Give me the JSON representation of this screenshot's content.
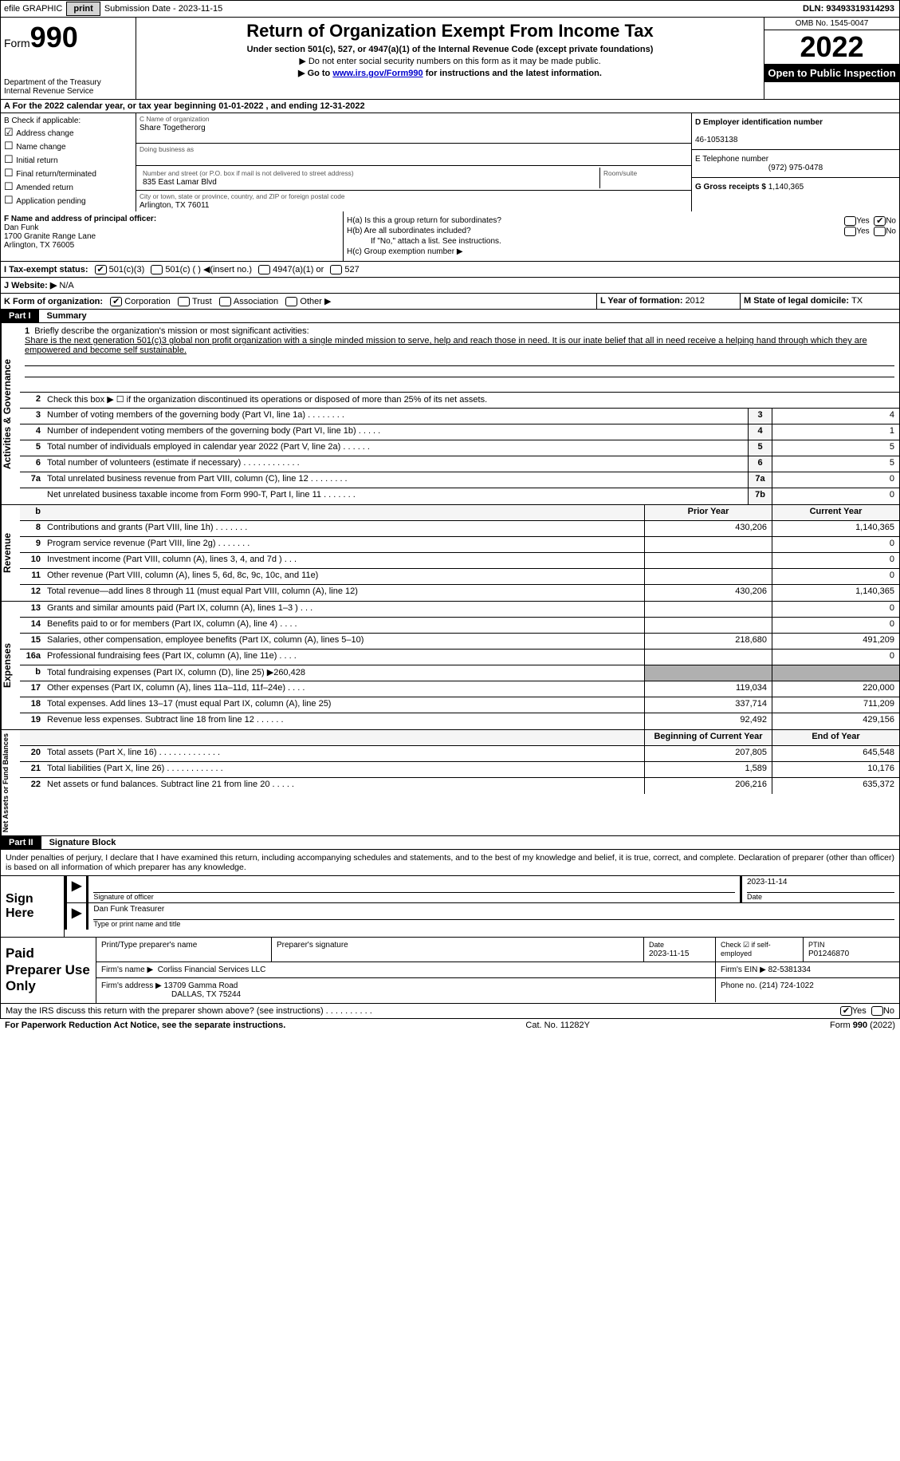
{
  "topbar": {
    "efile_label": "efile GRAPHIC",
    "print_btn": "print",
    "sub_prefix": "Submission Date - ",
    "sub_date": "2023-11-15",
    "dln_prefix": "DLN: ",
    "dln": "93493319314293"
  },
  "header": {
    "form_word": "Form",
    "form_num": "990",
    "dept": "Department of the Treasury\nInternal Revenue Service",
    "title": "Return of Organization Exempt From Income Tax",
    "sub": "Under section 501(c), 527, or 4947(a)(1) of the Internal Revenue Code (except private foundations)",
    "note1": "▶ Do not enter social security numbers on this form as it may be made public.",
    "note2_pre": "▶ Go to ",
    "note2_link": "www.irs.gov/Form990",
    "note2_post": " for instructions and the latest information.",
    "omb": "OMB No. 1545-0047",
    "year": "2022",
    "insp": "Open to Public Inspection"
  },
  "row_a": "A For the 2022 calendar year, or tax year beginning 01-01-2022    , and ending 12-31-2022",
  "col_b": {
    "hdr": "B Check if applicable:",
    "opts": [
      "Address change",
      "Name change",
      "Initial return",
      "Final return/terminated",
      "Amended return",
      "Application pending"
    ],
    "checked": [
      true,
      false,
      false,
      false,
      false,
      false
    ]
  },
  "col_c": {
    "name_lbl": "C Name of organization",
    "name": "Share Togetherorg",
    "dba_lbl": "Doing business as",
    "dba": "",
    "street_lbl": "Number and street (or P.O. box if mail is not delivered to street address)",
    "room_lbl": "Room/suite",
    "street": "835 East Lamar Blvd",
    "city_lbl": "City or town, state or province, country, and ZIP or foreign postal code",
    "city": "Arlington, TX  76011"
  },
  "col_d": {
    "ein_lbl": "D Employer identification number",
    "ein": "46-1053138",
    "tel_lbl": "E Telephone number",
    "tel": "(972) 975-0478",
    "gross_lbl": "G Gross receipts $ ",
    "gross": "1,140,365"
  },
  "block_fh": {
    "f_lbl": "F Name and address of principal officer:",
    "f_name": "Dan Funk",
    "f_addr1": "1700 Granite Range Lane",
    "f_addr2": "Arlington, TX  76005",
    "ha": "H(a)  Is this a group return for subordinates?",
    "hb": "H(b)  Are all subordinates included?",
    "hb_note": "If \"No,\" attach a list. See instructions.",
    "hc": "H(c)  Group exemption number ▶",
    "yes": "Yes",
    "no": "No"
  },
  "row_i": {
    "lbl": "I  Tax-exempt status:",
    "o1": "501(c)(3)",
    "o2": "501(c) (   ) ◀(insert no.)",
    "o3": "4947(a)(1) or",
    "o4": "527"
  },
  "row_j": {
    "lbl": "J  Website: ▶",
    "val": "  N/A"
  },
  "row_k": {
    "k": "K Form of organization:",
    "corp": "Corporation",
    "trust": "Trust",
    "assoc": "Association",
    "other": "Other ▶",
    "l_lbl": "L Year of formation: ",
    "l_val": "2012",
    "m_lbl": "M State of legal domicile: ",
    "m_val": "TX"
  },
  "parts": {
    "p1": "Part I",
    "p1t": "Summary",
    "p2": "Part II",
    "p2t": "Signature Block"
  },
  "mission": {
    "lbl": "1",
    "prompt": "Briefly describe the organization's mission or most significant activities:",
    "text": "Share is the next generation 501(c)3 global non profit organization with a single minded mission to serve, help and reach those in need. It is our inate belief that all in need receive a helping hand through which they are empowered and become self sustainable."
  },
  "gov": {
    "l2": "Check this box ▶ ☐  if the organization discontinued its operations or disposed of more than 25% of its net assets.",
    "rows": [
      {
        "n": "3",
        "d": "Number of voting members of the governing body (Part VI, line 1a)   .    .    .    .    .    .    .    .",
        "b": "3",
        "v": "4"
      },
      {
        "n": "4",
        "d": "Number of independent voting members of the governing body (Part VI, line 1b)   .    .    .    .    .",
        "b": "4",
        "v": "1"
      },
      {
        "n": "5",
        "d": "Total number of individuals employed in calendar year 2022 (Part V, line 2a)   .    .    .    .    .    .",
        "b": "5",
        "v": "5"
      },
      {
        "n": "6",
        "d": "Total number of volunteers (estimate if necessary)    .    .    .    .    .    .    .    .    .    .    .    .",
        "b": "6",
        "v": "5"
      },
      {
        "n": "7a",
        "d": "Total unrelated business revenue from Part VIII, column (C), line 12    .    .    .    .    .    .    .    .",
        "b": "7a",
        "v": "0"
      },
      {
        "n": "",
        "d": "Net unrelated business taxable income from Form 990-T, Part I, line 11   .    .    .    .    .    .    .",
        "b": "7b",
        "v": "0"
      }
    ]
  },
  "revenue": {
    "hdr_b": "b",
    "hdr_prior": "Prior Year",
    "hdr_cur": "Current Year",
    "rows": [
      {
        "n": "8",
        "d": "Contributions and grants (Part VIII, line 1h)    .    .    .    .    .    .    .",
        "p": "430,206",
        "c": "1,140,365"
      },
      {
        "n": "9",
        "d": "Program service revenue (Part VIII, line 2g)    .    .    .    .    .    .    .",
        "p": "",
        "c": "0"
      },
      {
        "n": "10",
        "d": "Investment income (Part VIII, column (A), lines 3, 4, and 7d )    .    .    .",
        "p": "",
        "c": "0"
      },
      {
        "n": "11",
        "d": "Other revenue (Part VIII, column (A), lines 5, 6d, 8c, 9c, 10c, and 11e)",
        "p": "",
        "c": "0"
      },
      {
        "n": "12",
        "d": "Total revenue—add lines 8 through 11 (must equal Part VIII, column (A), line 12)",
        "p": "430,206",
        "c": "1,140,365"
      }
    ]
  },
  "expenses": {
    "rows": [
      {
        "n": "13",
        "d": "Grants and similar amounts paid (Part IX, column (A), lines 1–3 )   .    .    .",
        "p": "",
        "c": "0"
      },
      {
        "n": "14",
        "d": "Benefits paid to or for members (Part IX, column (A), line 4)   .    .    .    .",
        "p": "",
        "c": "0"
      },
      {
        "n": "15",
        "d": "Salaries, other compensation, employee benefits (Part IX, column (A), lines 5–10)",
        "p": "218,680",
        "c": "491,209"
      },
      {
        "n": "16a",
        "d": "Professional fundraising fees (Part IX, column (A), line 11e)   .    .    .    .",
        "p": "",
        "c": "0"
      },
      {
        "n": "b",
        "d": "Total fundraising expenses (Part IX, column (D), line 25) ▶260,428",
        "p": "grey",
        "c": "grey"
      },
      {
        "n": "17",
        "d": "Other expenses (Part IX, column (A), lines 11a–11d, 11f–24e)   .    .    .    .",
        "p": "119,034",
        "c": "220,000"
      },
      {
        "n": "18",
        "d": "Total expenses. Add lines 13–17 (must equal Part IX, column (A), line 25)",
        "p": "337,714",
        "c": "711,209"
      },
      {
        "n": "19",
        "d": "Revenue less expenses. Subtract line 18 from line 12   .    .    .    .    .    .",
        "p": "92,492",
        "c": "429,156"
      }
    ]
  },
  "netassets": {
    "hdr_beg": "Beginning of Current Year",
    "hdr_end": "End of Year",
    "rows": [
      {
        "n": "20",
        "d": "Total assets (Part X, line 16)   .    .    .    .    .    .    .    .    .    .    .    .    .",
        "p": "207,805",
        "c": "645,548"
      },
      {
        "n": "21",
        "d": "Total liabilities (Part X, line 26)   .    .    .    .    .    .    .    .    .    .    .    .",
        "p": "1,589",
        "c": "10,176"
      },
      {
        "n": "22",
        "d": "Net assets or fund balances. Subtract line 21 from line 20   .    .    .    .    .",
        "p": "206,216",
        "c": "635,372"
      }
    ]
  },
  "penalty": "Under penalties of perjury, I declare that I have examined this return, including accompanying schedules and statements, and to the best of my knowledge and belief, it is true, correct, and complete. Declaration of preparer (other than officer) is based on all information of which preparer has any knowledge.",
  "sign": {
    "lbl": "Sign Here",
    "sig_lbl": "Signature of officer",
    "date": "2023-11-14",
    "date_lbl": "Date",
    "name": "Dan Funk  Treasurer",
    "name_lbl": "Type or print name and title"
  },
  "prep": {
    "lbl": "Paid Preparer Use Only",
    "r1": {
      "pn": "Print/Type preparer's name",
      "ps": "Preparer's signature",
      "dl": "Date",
      "dv": "2023-11-15",
      "chk": "Check ☑ if self-employed",
      "ptin_l": "PTIN",
      "ptin": "P01246870"
    },
    "r2": {
      "fl": "Firm's name    ▶",
      "fv": "Corliss Financial Services LLC",
      "el": "Firm's EIN ▶",
      "ev": "82-5381334"
    },
    "r3": {
      "al": "Firm's address ▶",
      "av1": "13709 Gamma Road",
      "av2": "DALLAS, TX  75244",
      "pl": "Phone no. ",
      "pv": "(214) 724-1022"
    }
  },
  "foot": {
    "q": "May the IRS discuss this return with the preparer shown above? (see instructions)    .    .    .    .    .    .    .    .    .    .",
    "yes": "Yes",
    "no": "No"
  },
  "last": {
    "l": "For Paperwork Reduction Act Notice, see the separate instructions.",
    "m": "Cat. No. 11282Y",
    "r": "Form 990 (2022)"
  },
  "vtabs": {
    "gov": "Activities & Governance",
    "rev": "Revenue",
    "exp": "Expenses",
    "net": "Net Assets or Fund Balances"
  }
}
